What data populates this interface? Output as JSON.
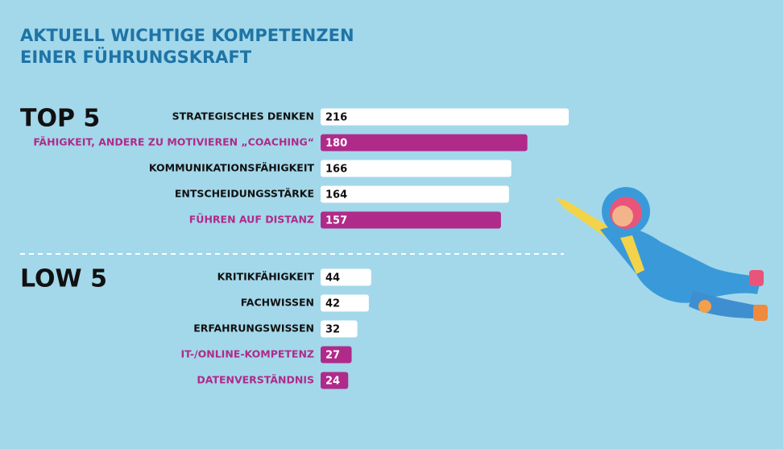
{
  "header": {
    "title_lines": [
      "AKTUELL WICHTIGE KOMPETENZEN",
      "EINER FÜHRUNGSKRAFT"
    ]
  },
  "chart_data": [
    {
      "type": "bar",
      "title": "TOP 5",
      "categories": [
        "STRATEGISCHES DENKEN",
        "FÄHIGKEIT, ANDERE ZU MOTIVIEREN „COACHING“",
        "KOMMUNIKATIONSFÄHIGKEIT",
        "ENTSCHEIDUNGSSTÄRKE",
        "FÜHREN AUF DISTANZ"
      ],
      "values": [
        216,
        180,
        166,
        164,
        157
      ],
      "colors": [
        "#ffffff",
        "#b02a8a",
        "#ffffff",
        "#ffffff",
        "#b02a8a"
      ]
    },
    {
      "type": "bar",
      "title": "LOW 5",
      "categories": [
        "KRITIKFÄHIGKEIT",
        "FACHWISSEN",
        "ERFAHRUNGSWISSEN",
        "IT-/ONLINE-KOMPETENZ",
        "DATENVERSTÄNDNIS"
      ],
      "values": [
        44,
        42,
        32,
        27,
        24
      ],
      "colors": [
        "#ffffff",
        "#ffffff",
        "#ffffff",
        "#b02a8a",
        "#b02a8a"
      ]
    }
  ]
}
